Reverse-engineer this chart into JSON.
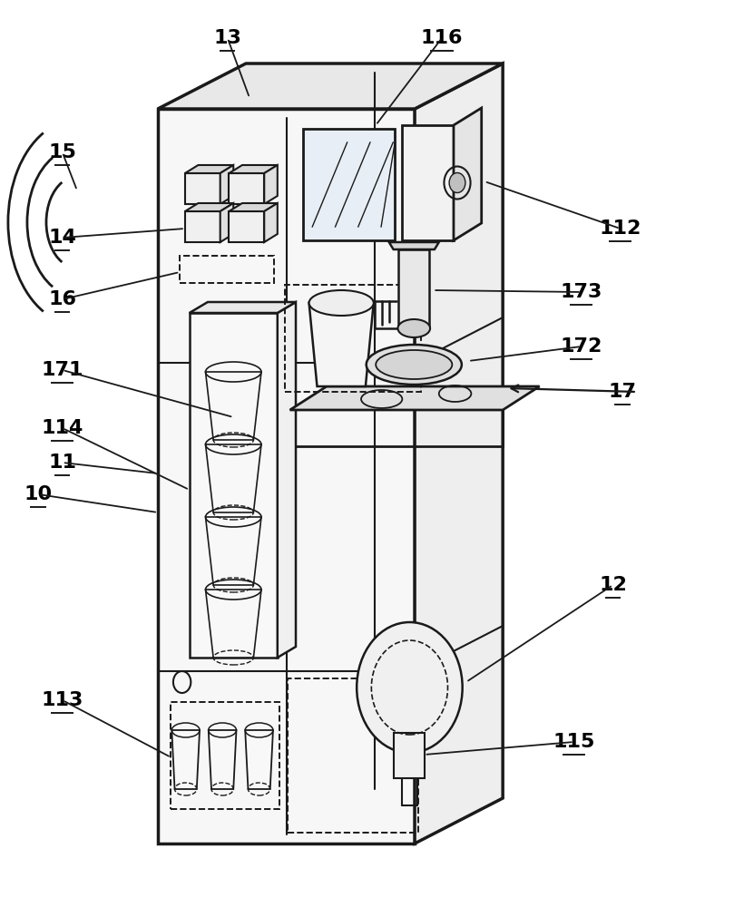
{
  "bg_color": "#ffffff",
  "line_color": "#1a1a1a",
  "line_width": 1.8,
  "thick_lw": 2.5,
  "label_fontsize": 16,
  "label_fontweight": "bold",
  "machine": {
    "fl": 0.215,
    "fr": 0.565,
    "fb": 0.07,
    "ft": 0.88,
    "ox": 0.12,
    "oy": 0.05
  }
}
